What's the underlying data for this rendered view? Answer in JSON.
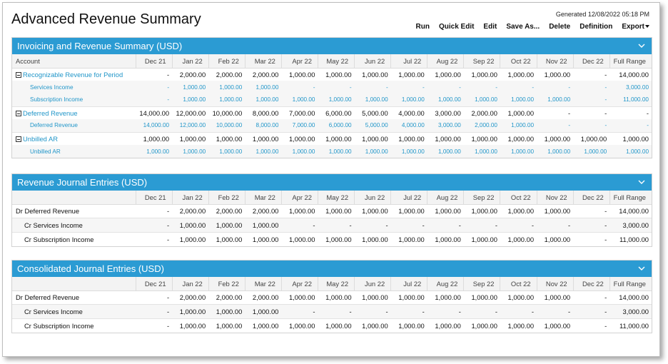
{
  "page": {
    "title": "Advanced Revenue Summary",
    "generated": "Generated 12/08/2022 05:18 PM"
  },
  "toolbar": {
    "run": "Run",
    "quick_edit": "Quick Edit",
    "edit": "Edit",
    "save_as": "Save As...",
    "delete": "Delete",
    "definition": "Definition",
    "export": "Export"
  },
  "columns": [
    "Dec 21",
    "Jan 22",
    "Feb 22",
    "Mar 22",
    "Apr 22",
    "May 22",
    "Jun 22",
    "Jul 22",
    "Aug 22",
    "Sep 22",
    "Oct 22",
    "Nov 22",
    "Dec 22",
    "Full Range"
  ],
  "summary": {
    "title": "Invoicing and Revenue Summary (USD)",
    "account_header": "Account",
    "rows": [
      {
        "type": "main",
        "label": "Recognizable Revenue for Period",
        "values": [
          "-",
          "2,000.00",
          "2,000.00",
          "2,000.00",
          "1,000.00",
          "1,000.00",
          "1,000.00",
          "1,000.00",
          "1,000.00",
          "1,000.00",
          "1,000.00",
          "1,000.00",
          "-",
          "14,000.00"
        ]
      },
      {
        "type": "sub",
        "label": "Services Income",
        "values": [
          "-",
          "1,000.00",
          "1,000.00",
          "1,000.00",
          "-",
          "-",
          "-",
          "-",
          "-",
          "-",
          "-",
          "-",
          "-",
          "3,000.00"
        ]
      },
      {
        "type": "sub",
        "label": "Subscription Income",
        "values": [
          "-",
          "1,000.00",
          "1,000.00",
          "1,000.00",
          "1,000.00",
          "1,000.00",
          "1,000.00",
          "1,000.00",
          "1,000.00",
          "1,000.00",
          "1,000.00",
          "1,000.00",
          "-",
          "11,000.00"
        ]
      },
      {
        "type": "main",
        "label": "Deferred Revenue",
        "values": [
          "14,000.00",
          "12,000.00",
          "10,000.00",
          "8,000.00",
          "7,000.00",
          "6,000.00",
          "5,000.00",
          "4,000.00",
          "3,000.00",
          "2,000.00",
          "1,000.00",
          "-",
          "-",
          "-"
        ]
      },
      {
        "type": "sub",
        "label": "Deferred Revenue",
        "values": [
          "14,000.00",
          "12,000.00",
          "10,000.00",
          "8,000.00",
          "7,000.00",
          "6,000.00",
          "5,000.00",
          "4,000.00",
          "3,000.00",
          "2,000.00",
          "1,000.00",
          "-",
          "-",
          "-"
        ]
      },
      {
        "type": "main",
        "label": "Unbilled AR",
        "values": [
          "1,000.00",
          "1,000.00",
          "1,000.00",
          "1,000.00",
          "1,000.00",
          "1,000.00",
          "1,000.00",
          "1,000.00",
          "1,000.00",
          "1,000.00",
          "1,000.00",
          "1,000.00",
          "1,000.00",
          "1,000.00"
        ]
      },
      {
        "type": "sub",
        "label": "Unbilled AR",
        "values": [
          "1,000.00",
          "1,000.00",
          "1,000.00",
          "1,000.00",
          "1,000.00",
          "1,000.00",
          "1,000.00",
          "1,000.00",
          "1,000.00",
          "1,000.00",
          "1,000.00",
          "1,000.00",
          "1,000.00",
          "1,000.00"
        ]
      }
    ]
  },
  "revenue_journal": {
    "title": "Revenue Journal Entries (USD)",
    "rows": [
      {
        "label": "Dr Deferred Revenue",
        "indent": false,
        "values": [
          "-",
          "2,000.00",
          "2,000.00",
          "2,000.00",
          "1,000.00",
          "1,000.00",
          "1,000.00",
          "1,000.00",
          "1,000.00",
          "1,000.00",
          "1,000.00",
          "1,000.00",
          "-",
          "14,000.00"
        ]
      },
      {
        "label": "Cr Services Income",
        "indent": true,
        "values": [
          "-",
          "1,000.00",
          "1,000.00",
          "1,000.00",
          "-",
          "-",
          "-",
          "-",
          "-",
          "-",
          "-",
          "-",
          "-",
          "3,000.00"
        ]
      },
      {
        "label": "Cr Subscription Income",
        "indent": true,
        "values": [
          "-",
          "1,000.00",
          "1,000.00",
          "1,000.00",
          "1,000.00",
          "1,000.00",
          "1,000.00",
          "1,000.00",
          "1,000.00",
          "1,000.00",
          "1,000.00",
          "1,000.00",
          "-",
          "11,000.00"
        ]
      }
    ]
  },
  "consolidated_journal": {
    "title": "Consolidated Journal Entries (USD)",
    "rows": [
      {
        "label": "Dr Deferred Revenue",
        "indent": false,
        "values": [
          "-",
          "2,000.00",
          "2,000.00",
          "2,000.00",
          "1,000.00",
          "1,000.00",
          "1,000.00",
          "1,000.00",
          "1,000.00",
          "1,000.00",
          "1,000.00",
          "1,000.00",
          "-",
          "14,000.00"
        ]
      },
      {
        "label": "Cr Services Income",
        "indent": true,
        "values": [
          "-",
          "1,000.00",
          "1,000.00",
          "1,000.00",
          "-",
          "-",
          "-",
          "-",
          "-",
          "-",
          "-",
          "-",
          "-",
          "3,000.00"
        ]
      },
      {
        "label": "Cr Subscription Income",
        "indent": true,
        "values": [
          "-",
          "1,000.00",
          "1,000.00",
          "1,000.00",
          "1,000.00",
          "1,000.00",
          "1,000.00",
          "1,000.00",
          "1,000.00",
          "1,000.00",
          "1,000.00",
          "1,000.00",
          "-",
          "11,000.00"
        ]
      }
    ]
  },
  "icons": {
    "collapse": "chevron-down-icon",
    "expand_toggle": "minus-box-icon"
  },
  "colors": {
    "panel_header": "#2b9bd3",
    "link": "#2196c9"
  }
}
